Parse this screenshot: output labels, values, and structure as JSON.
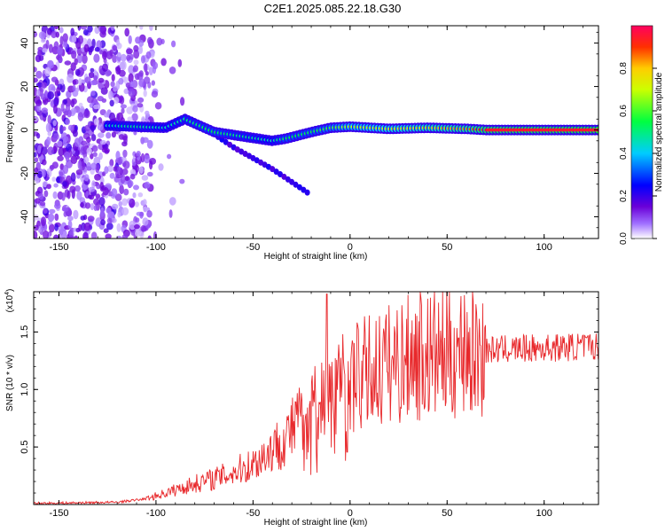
{
  "title": "C2E1.2025.085.22.18.G30",
  "chart_data": [
    {
      "type": "heatmap",
      "xlabel": "Height of straight line (km)",
      "ylabel": "Frequency (Hz)",
      "xlim": [
        -163,
        128
      ],
      "ylim": [
        -50,
        48
      ],
      "xticks": [
        -150,
        -100,
        -50,
        0,
        50,
        100
      ],
      "yticks": [
        -40,
        -20,
        0,
        20,
        40
      ],
      "colorbar": {
        "label": "Normalized spectral amplitude",
        "range": [
          0.0,
          1.0
        ],
        "ticks": [
          "0.0",
          "0.2",
          "0.4",
          "0.6",
          "0.8"
        ],
        "tick_values": [
          0.0,
          0.2,
          0.4,
          0.6,
          0.8
        ]
      },
      "features": {
        "noise_region_km": [
          -163,
          -105
        ],
        "main_trace": [
          {
            "x": -125,
            "y": 2,
            "amp": 0.45
          },
          {
            "x": -110,
            "y": 1.5,
            "amp": 0.5
          },
          {
            "x": -95,
            "y": 1,
            "amp": 0.45
          },
          {
            "x": -85,
            "y": 5,
            "amp": 0.5
          },
          {
            "x": -70,
            "y": -1,
            "amp": 0.55
          },
          {
            "x": -55,
            "y": -3,
            "amp": 0.5
          },
          {
            "x": -40,
            "y": -5,
            "amp": 0.45
          },
          {
            "x": -33,
            "y": -4,
            "amp": 0.55
          },
          {
            "x": -20,
            "y": -1,
            "amp": 0.55
          },
          {
            "x": -10,
            "y": 1,
            "amp": 0.6
          },
          {
            "x": 0,
            "y": 1.5,
            "amp": 0.7
          },
          {
            "x": 20,
            "y": 0.5,
            "amp": 0.75
          },
          {
            "x": 40,
            "y": 1,
            "amp": 0.8
          },
          {
            "x": 60,
            "y": 0.5,
            "amp": 0.85
          },
          {
            "x": 70,
            "y": 0,
            "amp": 0.95
          },
          {
            "x": 128,
            "y": 0,
            "amp": 1.0
          }
        ],
        "secondary_trace": [
          {
            "x": -70,
            "y": -2
          },
          {
            "x": -60,
            "y": -8
          },
          {
            "x": -50,
            "y": -13
          },
          {
            "x": -40,
            "y": -18
          },
          {
            "x": -30,
            "y": -24
          },
          {
            "x": -20,
            "y": -30
          }
        ]
      }
    },
    {
      "type": "line",
      "xlabel": "Height of straight line (km)",
      "ylabel": "SNR (10 * v/v)",
      "multiplier": "(x10^4)",
      "multiplier_base": "(x10",
      "multiplier_exp": "4",
      "multiplier_close": ")",
      "xlim": [
        -163,
        128
      ],
      "ylim": [
        0,
        1.85
      ],
      "xticks": [
        -150,
        -100,
        -50,
        0,
        50,
        100
      ],
      "yticks": [
        0.5,
        1.0,
        1.5
      ],
      "series": [
        {
          "color": "#e8282b",
          "envelope": [
            {
              "x": -163,
              "y": 0.01
            },
            {
              "x": -120,
              "y": 0.02
            },
            {
              "x": -105,
              "y": 0.05
            },
            {
              "x": -95,
              "y": 0.1
            },
            {
              "x": -80,
              "y": 0.18
            },
            {
              "x": -65,
              "y": 0.25
            },
            {
              "x": -50,
              "y": 0.35
            },
            {
              "x": -35,
              "y": 0.55
            },
            {
              "x": -22,
              "y": 0.8
            },
            {
              "x": -15,
              "y": 0.95
            },
            {
              "x": -5,
              "y": 1.05
            },
            {
              "x": 10,
              "y": 1.15
            },
            {
              "x": 25,
              "y": 1.25
            },
            {
              "x": 45,
              "y": 1.3
            },
            {
              "x": 60,
              "y": 1.33
            },
            {
              "x": 80,
              "y": 1.35
            },
            {
              "x": 100,
              "y": 1.36
            },
            {
              "x": 128,
              "y": 1.38
            }
          ],
          "peaks": [
            {
              "x": -12,
              "y": 1.83
            },
            {
              "x": 36,
              "y": 1.85
            },
            {
              "x": 59,
              "y": 1.82
            },
            {
              "x": 32,
              "y": 1.6
            }
          ]
        }
      ]
    }
  ]
}
